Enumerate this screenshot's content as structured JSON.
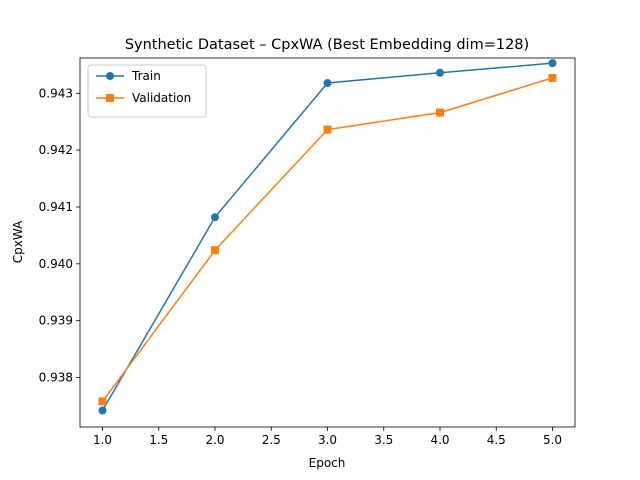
{
  "chart_data": {
    "type": "line",
    "title": "Synthetic Dataset – CpxWA (Best Embedding dim=128)",
    "xlabel": "Epoch",
    "ylabel": "CpxWA",
    "x": [
      1,
      2,
      3,
      4,
      5
    ],
    "xlim": [
      0.8,
      5.2
    ],
    "ylim": [
      0.93713,
      0.94362
    ],
    "xticks": [
      "1.0",
      "1.5",
      "2.0",
      "2.5",
      "3.0",
      "3.5",
      "4.0",
      "4.5",
      "5.0"
    ],
    "xtick_values": [
      1.0,
      1.5,
      2.0,
      2.5,
      3.0,
      3.5,
      4.0,
      4.5,
      5.0
    ],
    "yticks": [
      "0.938",
      "0.939",
      "0.940",
      "0.941",
      "0.942",
      "0.943"
    ],
    "ytick_values": [
      0.938,
      0.939,
      0.94,
      0.941,
      0.942,
      0.943
    ],
    "grid": false,
    "legend_position": "top-left",
    "series": [
      {
        "name": "Train",
        "color": "#1f77b4",
        "marker": "circle",
        "values": [
          0.93742,
          0.94082,
          0.94318,
          0.94336,
          0.94353
        ]
      },
      {
        "name": "Validation",
        "color": "#ff7f0e",
        "marker": "square",
        "values": [
          0.93758,
          0.94024,
          0.94236,
          0.94266,
          0.94327
        ]
      }
    ]
  }
}
